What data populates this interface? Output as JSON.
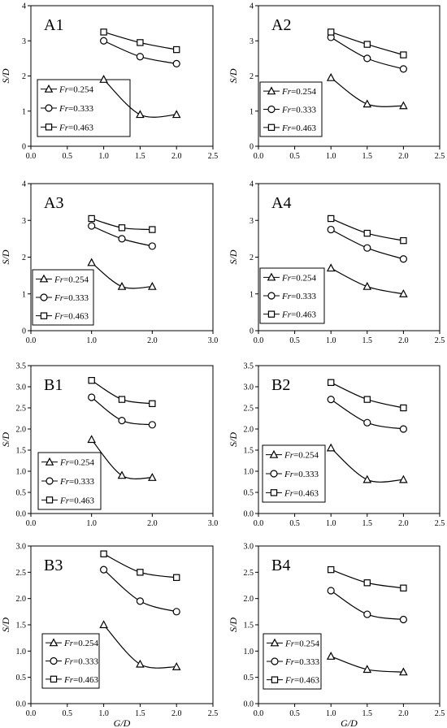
{
  "chart_data": [
    {
      "type": "line",
      "title": "A1",
      "xlabel": "",
      "ylabel": "S/D",
      "xlim": [
        0,
        2.5
      ],
      "ylim": [
        0,
        4
      ],
      "xticks": [
        "0.0",
        "0.5",
        "1.0",
        "1.5",
        "2.0",
        "2.5"
      ],
      "yticks": [
        "0",
        "1",
        "2",
        "3",
        "4"
      ],
      "legend": {
        "placement": "lower-left",
        "var": "Fr",
        "entries": [
          "=0.254",
          "=0.333",
          "=0.463"
        ]
      },
      "series": [
        {
          "name": "Fr=0.254",
          "marker": "triangle",
          "x": [
            1.0,
            1.5,
            2.0
          ],
          "y": [
            1.9,
            0.9,
            0.9
          ]
        },
        {
          "name": "Fr=0.333",
          "marker": "circle",
          "x": [
            1.0,
            1.5,
            2.0
          ],
          "y": [
            3.0,
            2.55,
            2.35
          ]
        },
        {
          "name": "Fr=0.463",
          "marker": "square",
          "x": [
            1.0,
            1.5,
            2.0
          ],
          "y": [
            3.25,
            2.95,
            2.75
          ]
        }
      ]
    },
    {
      "type": "line",
      "title": "A2",
      "xlabel": "",
      "ylabel": "S/D",
      "xlim": [
        0,
        2.5
      ],
      "ylim": [
        0,
        4
      ],
      "xticks": [
        "0.0",
        "0.5",
        "1.0",
        "1.5",
        "2.0",
        "2.5"
      ],
      "yticks": [
        "0",
        "1",
        "2",
        "3",
        "4"
      ],
      "legend": {
        "placement": "lower-left",
        "var": "Fr",
        "entries": [
          "=0.254",
          "=0.333",
          "=0.463"
        ]
      },
      "series": [
        {
          "name": "Fr=0.254",
          "marker": "triangle",
          "x": [
            1.0,
            1.5,
            2.0
          ],
          "y": [
            1.95,
            1.2,
            1.15
          ]
        },
        {
          "name": "Fr=0.333",
          "marker": "circle",
          "x": [
            1.0,
            1.5,
            2.0
          ],
          "y": [
            3.1,
            2.5,
            2.2
          ]
        },
        {
          "name": "Fr=0.463",
          "marker": "square",
          "x": [
            1.0,
            1.5,
            2.0
          ],
          "y": [
            3.25,
            2.9,
            2.6
          ]
        }
      ]
    },
    {
      "type": "line",
      "title": "A3",
      "xlabel": "",
      "ylabel": "S/D",
      "xlim": [
        0,
        3
      ],
      "ylim": [
        0,
        4
      ],
      "xticks": [
        "0.0",
        "1.0",
        "2.0",
        "3.0"
      ],
      "yticks": [
        "0",
        "1",
        "2",
        "3",
        "4"
      ],
      "legend": {
        "placement": "lower-left",
        "var": "Fr",
        "entries": [
          "=0.254",
          "=0.333",
          "=0.463"
        ]
      },
      "series": [
        {
          "name": "Fr=0.254",
          "marker": "triangle",
          "x": [
            1.0,
            1.5,
            2.0
          ],
          "y": [
            1.85,
            1.2,
            1.2
          ]
        },
        {
          "name": "Fr=0.333",
          "marker": "circle",
          "x": [
            1.0,
            1.5,
            2.0
          ],
          "y": [
            2.85,
            2.5,
            2.3
          ]
        },
        {
          "name": "Fr=0.463",
          "marker": "square",
          "x": [
            1.0,
            1.5,
            2.0
          ],
          "y": [
            3.05,
            2.8,
            2.75
          ]
        }
      ]
    },
    {
      "type": "line",
      "title": "A4",
      "xlabel": "",
      "ylabel": "S/D",
      "xlim": [
        0,
        2.5
      ],
      "ylim": [
        0,
        4
      ],
      "xticks": [
        "0.0",
        "0.5",
        "1.0",
        "1.5",
        "2.0",
        "2.5"
      ],
      "yticks": [
        "0",
        "1",
        "2",
        "3",
        "4"
      ],
      "legend": {
        "placement": "lower-left",
        "var": "Fr",
        "entries": [
          "=0.254",
          "=0.333",
          "=0.463"
        ]
      },
      "series": [
        {
          "name": "Fr=0.254",
          "marker": "triangle",
          "x": [
            1.0,
            1.5,
            2.0
          ],
          "y": [
            1.7,
            1.2,
            1.0
          ]
        },
        {
          "name": "Fr=0.333",
          "marker": "circle",
          "x": [
            1.0,
            1.5,
            2.0
          ],
          "y": [
            2.75,
            2.25,
            1.95
          ]
        },
        {
          "name": "Fr=0.463",
          "marker": "square",
          "x": [
            1.0,
            1.5,
            2.0
          ],
          "y": [
            3.05,
            2.65,
            2.45
          ]
        }
      ]
    },
    {
      "type": "line",
      "title": "B1",
      "xlabel": "",
      "ylabel": "S/D",
      "xlim": [
        0,
        3
      ],
      "ylim": [
        0,
        3.5
      ],
      "xticks": [
        "0.0",
        "1.0",
        "2.0",
        "3.0"
      ],
      "yticks": [
        "0.0",
        "0.5",
        "1.0",
        "1.5",
        "2.0",
        "2.5",
        "3.0",
        "3.5"
      ],
      "legend": {
        "placement": "lower-left",
        "var": "Fr",
        "entries": [
          "=0.254",
          "=0.333",
          "=0.463"
        ]
      },
      "series": [
        {
          "name": "Fr=0.254",
          "marker": "triangle",
          "x": [
            1.0,
            1.5,
            2.0
          ],
          "y": [
            1.75,
            0.9,
            0.85
          ]
        },
        {
          "name": "Fr=0.333",
          "marker": "circle",
          "x": [
            1.0,
            1.5,
            2.0
          ],
          "y": [
            2.75,
            2.2,
            2.1
          ]
        },
        {
          "name": "Fr=0.463",
          "marker": "square",
          "x": [
            1.0,
            1.5,
            2.0
          ],
          "y": [
            3.15,
            2.7,
            2.6
          ]
        }
      ]
    },
    {
      "type": "line",
      "title": "B2",
      "xlabel": "",
      "ylabel": "S/D",
      "xlim": [
        0,
        2.5
      ],
      "ylim": [
        0,
        3.5
      ],
      "xticks": [
        "0.0",
        "0.5",
        "1.0",
        "1.5",
        "2.0",
        "2.5"
      ],
      "yticks": [
        "0.0",
        "0.5",
        "1.0",
        "1.5",
        "2.0",
        "2.5",
        "3.0",
        "3.5"
      ],
      "legend": {
        "placement": "lower-left",
        "var": "Fr",
        "entries": [
          "=0.254",
          "=0.333",
          "=0.463"
        ]
      },
      "series": [
        {
          "name": "Fr=0.254",
          "marker": "triangle",
          "x": [
            1.0,
            1.5,
            2.0
          ],
          "y": [
            1.55,
            0.8,
            0.8
          ]
        },
        {
          "name": "Fr=0.333",
          "marker": "circle",
          "x": [
            1.0,
            1.5,
            2.0
          ],
          "y": [
            2.7,
            2.15,
            2.0
          ]
        },
        {
          "name": "Fr=0.463",
          "marker": "square",
          "x": [
            1.0,
            1.5,
            2.0
          ],
          "y": [
            3.1,
            2.7,
            2.5
          ]
        }
      ]
    },
    {
      "type": "line",
      "title": "B3",
      "xlabel": "G/D",
      "ylabel": "S/D",
      "xlim": [
        0,
        2.5
      ],
      "ylim": [
        0,
        3
      ],
      "xticks": [
        "0.0",
        "0.5",
        "1.0",
        "1.5",
        "2.0",
        "2.5"
      ],
      "yticks": [
        "0.0",
        "0.5",
        "1.0",
        "1.5",
        "2.0",
        "2.5",
        "3.0"
      ],
      "legend": {
        "placement": "lower-left",
        "var": "Fr",
        "entries": [
          "=0.254",
          "=0.333",
          "=0.463"
        ]
      },
      "series": [
        {
          "name": "Fr=0.254",
          "marker": "triangle",
          "x": [
            1.0,
            1.5,
            2.0
          ],
          "y": [
            1.5,
            0.75,
            0.7
          ]
        },
        {
          "name": "Fr=0.333",
          "marker": "circle",
          "x": [
            1.0,
            1.5,
            2.0
          ],
          "y": [
            2.55,
            1.95,
            1.75
          ]
        },
        {
          "name": "Fr=0.463",
          "marker": "square",
          "x": [
            1.0,
            1.5,
            2.0
          ],
          "y": [
            2.85,
            2.5,
            2.4
          ]
        }
      ]
    },
    {
      "type": "line",
      "title": "B4",
      "xlabel": "G/D",
      "ylabel": "S/D",
      "xlim": [
        0,
        2.5
      ],
      "ylim": [
        0,
        3
      ],
      "xticks": [
        "0.0",
        "0.5",
        "1.0",
        "1.5",
        "2.0",
        "2.5"
      ],
      "yticks": [
        "0.0",
        "0.5",
        "1.0",
        "1.5",
        "2.0",
        "2.5",
        "3.0"
      ],
      "legend": {
        "placement": "lower-left",
        "var": "Fr",
        "entries": [
          "=0.254",
          "=0.333",
          "=0.463"
        ]
      },
      "series": [
        {
          "name": "Fr=0.254",
          "marker": "triangle",
          "x": [
            1.0,
            1.5,
            2.0
          ],
          "y": [
            0.9,
            0.65,
            0.6
          ]
        },
        {
          "name": "Fr=0.333",
          "marker": "circle",
          "x": [
            1.0,
            1.5,
            2.0
          ],
          "y": [
            2.15,
            1.7,
            1.6
          ]
        },
        {
          "name": "Fr=0.463",
          "marker": "square",
          "x": [
            1.0,
            1.5,
            2.0
          ],
          "y": [
            2.55,
            2.3,
            2.2
          ]
        }
      ]
    }
  ]
}
